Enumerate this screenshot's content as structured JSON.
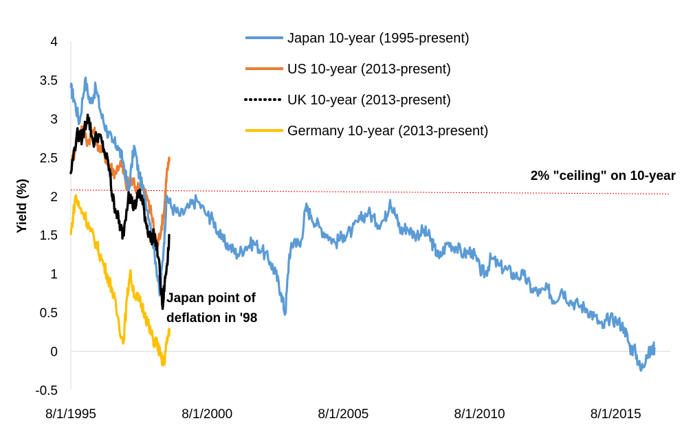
{
  "chart_data": {
    "type": "line",
    "title": "",
    "xlabel": "",
    "ylabel": "Yield (%)",
    "ylim": [
      -0.5,
      4
    ],
    "yticks": [
      -0.5,
      0,
      0.5,
      1,
      1.5,
      2,
      2.5,
      3,
      3.5,
      4
    ],
    "ytick_labels": [
      "-0.5",
      "0",
      "0.5",
      "1",
      "1.5",
      "2",
      "2.5",
      "3",
      "3.5",
      "4"
    ],
    "xlim": [
      1995.58,
      2017.58
    ],
    "xticks": [
      1995.58,
      2000.58,
      2005.58,
      2010.58,
      2015.58
    ],
    "xtick_labels": [
      "8/1/1995",
      "8/1/2000",
      "8/1/2005",
      "8/1/2010",
      "8/1/2015"
    ],
    "gridlines": false,
    "legend_position": "top-center",
    "series": [
      {
        "name": "Japan 10-year (1995-present)",
        "color": "#5B9BD5",
        "style": "solid",
        "x": [
          1995.58,
          1995.7,
          1995.9,
          1996.1,
          1996.3,
          1996.5,
          1996.7,
          1996.9,
          1997.1,
          1997.3,
          1997.5,
          1997.7,
          1997.9,
          1998.1,
          1998.3,
          1998.5,
          1998.7,
          1998.85,
          1999.0,
          1999.1,
          1999.3,
          1999.6,
          1999.9,
          2000.2,
          2000.6,
          2000.8,
          2001.1,
          2001.4,
          2001.7,
          2002.0,
          2002.3,
          2002.6,
          2002.9,
          2003.1,
          2003.3,
          2003.45,
          2003.6,
          2003.8,
          2004.0,
          2004.2,
          2004.4,
          2004.7,
          2005.0,
          2005.3,
          2005.6,
          2005.9,
          2006.2,
          2006.5,
          2006.8,
          2007.1,
          2007.3,
          2007.5,
          2007.7,
          2007.9,
          2008.2,
          2008.5,
          2008.7,
          2008.9,
          2009.1,
          2009.4,
          2009.7,
          2010.0,
          2010.3,
          2010.6,
          2010.8,
          2011.0,
          2011.3,
          2011.6,
          2011.9,
          2012.2,
          2012.5,
          2012.8,
          2013.1,
          2013.3,
          2013.6,
          2013.9,
          2014.2,
          2014.5,
          2014.8,
          2015.1,
          2015.3,
          2015.6,
          2015.9,
          2016.1,
          2016.3,
          2016.5,
          2016.7,
          2016.9,
          2017.0
        ],
        "values": [
          3.4,
          3.25,
          2.95,
          3.5,
          3.2,
          3.4,
          3.05,
          2.85,
          2.7,
          2.65,
          2.45,
          2.05,
          2.65,
          2.25,
          2.0,
          1.65,
          1.15,
          0.72,
          1.4,
          2.0,
          1.85,
          1.75,
          1.85,
          1.95,
          1.75,
          1.7,
          1.45,
          1.35,
          1.25,
          1.35,
          1.4,
          1.3,
          1.15,
          1.0,
          0.75,
          0.48,
          1.25,
          1.45,
          1.35,
          1.85,
          1.75,
          1.6,
          1.5,
          1.4,
          1.5,
          1.55,
          1.7,
          1.8,
          1.65,
          1.7,
          1.95,
          1.75,
          1.55,
          1.6,
          1.5,
          1.55,
          1.5,
          1.35,
          1.2,
          1.4,
          1.35,
          1.25,
          1.3,
          1.05,
          1.0,
          1.2,
          1.1,
          1.05,
          0.97,
          0.98,
          0.8,
          0.75,
          0.8,
          0.65,
          0.8,
          0.65,
          0.6,
          0.55,
          0.45,
          0.3,
          0.42,
          0.4,
          0.3,
          0.05,
          0.0,
          -0.25,
          -0.05,
          0.0,
          0.05
        ]
      },
      {
        "name": "US 10-year (2013-present)",
        "color": "#ED7D31",
        "style": "solid",
        "x": [
          1995.58,
          1995.8,
          1996.0,
          1996.2,
          1996.4,
          1996.6,
          1996.8,
          1997.0,
          1997.2,
          1997.4,
          1997.6,
          1997.8,
          1998.0,
          1998.2,
          1998.4,
          1998.55,
          1998.75,
          1998.9,
          1999.0,
          1999.1,
          1999.2
        ],
        "values": [
          2.35,
          2.75,
          2.9,
          2.7,
          2.85,
          2.65,
          2.55,
          2.4,
          2.3,
          2.45,
          2.15,
          2.2,
          2.1,
          2.15,
          1.95,
          1.75,
          1.35,
          1.6,
          1.8,
          2.3,
          2.45
        ]
      },
      {
        "name": "UK 10-year (2013-present)",
        "color": "#000000",
        "style": "dotted",
        "x": [
          1995.58,
          1995.8,
          1996.0,
          1996.2,
          1996.4,
          1996.6,
          1996.8,
          1997.0,
          1997.1,
          1997.25,
          1997.4,
          1997.5,
          1997.7,
          1997.9,
          1998.1,
          1998.2,
          1998.35,
          1998.5,
          1998.65,
          1998.8,
          1998.95,
          1999.0,
          1999.1,
          1999.2
        ],
        "values": [
          2.3,
          2.8,
          2.75,
          3.05,
          2.7,
          2.8,
          2.6,
          2.35,
          2.0,
          1.8,
          1.6,
          1.5,
          2.05,
          1.85,
          2.05,
          1.95,
          1.65,
          1.45,
          1.5,
          1.2,
          0.55,
          0.8,
          1.1,
          1.5
        ]
      },
      {
        "name": "Germany 10-year (2013-present)",
        "color": "#FFC000",
        "style": "solid",
        "x": [
          1995.58,
          1995.75,
          1995.9,
          1996.1,
          1996.3,
          1996.5,
          1996.7,
          1996.9,
          1997.1,
          1997.3,
          1997.5,
          1997.65,
          1997.75,
          1997.95,
          1998.1,
          1998.3,
          1998.45,
          1998.6,
          1998.75,
          1998.9,
          1999.0,
          1999.1,
          1999.2
        ],
        "values": [
          1.5,
          2.0,
          1.85,
          1.75,
          1.55,
          1.4,
          1.2,
          1.0,
          0.8,
          0.45,
          0.1,
          0.7,
          1.0,
          0.7,
          0.65,
          0.5,
          0.3,
          0.15,
          0.1,
          -0.1,
          -0.15,
          0.1,
          0.3
        ]
      }
    ],
    "reference_line": {
      "label": "2% \"ceiling\" on 10-year",
      "color": "#FF0000",
      "style": "dotted",
      "x": [
        1995.58,
        2017.58
      ],
      "values": [
        2.08,
        2.03
      ]
    },
    "annotations": [
      {
        "text_line1": "Japan point of",
        "text_line2": "deflation in '98",
        "x": 1998.9,
        "y": 0.72
      }
    ]
  }
}
